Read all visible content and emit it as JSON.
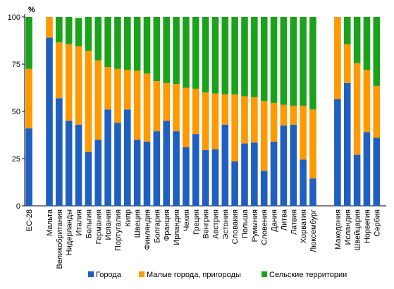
{
  "chart_data": {
    "type": "bar",
    "stacked": true,
    "unit": "%",
    "ylim": [
      0,
      100
    ],
    "yticks": [
      0,
      25,
      50,
      75,
      100
    ],
    "grid": false,
    "legend_position": "bottom",
    "groups": [
      {
        "categories": [
          "ЕС-28"
        ]
      },
      {
        "categories": [
          "Мальта",
          "Великобритания",
          "Нидерланды",
          "Италия",
          "Бельгия",
          "Германия",
          "Испания",
          "Португалия",
          "Кипр",
          "Швеция",
          "Финляндия",
          "Болгария",
          "Франция",
          "Ирландия",
          "Чехия",
          "Греция",
          "Венгрия",
          "Австрия",
          "Эстония",
          "Словакия",
          "Польша",
          "Румыния",
          "Словения",
          "Дания",
          "Литва",
          "Латвия",
          "Хорватия",
          "Люксембург"
        ]
      },
      {
        "categories": [
          "Македония",
          "Исландия",
          "Швейцария",
          "Норвегия",
          "Сербия"
        ]
      }
    ],
    "series": [
      {
        "name": "Города",
        "color": "#1f5fbf",
        "values": [
          41,
          89,
          57,
          45,
          43,
          28.5,
          35,
          51,
          44,
          51,
          35,
          34,
          39.5,
          45,
          39.5,
          31,
          38,
          29.5,
          30,
          43,
          23.5,
          33,
          33.5,
          18.5,
          34,
          42.5,
          43,
          24.5,
          14.5,
          56.5,
          65,
          27,
          39,
          36
        ]
      },
      {
        "name": "Малые города, пригороды",
        "color": "#ff9900",
        "values": [
          31.5,
          11,
          29.5,
          40.5,
          41.5,
          53.5,
          42,
          22.5,
          28.5,
          21,
          36.5,
          36,
          26.5,
          20,
          25,
          31.5,
          24,
          30.5,
          29.5,
          16,
          35.5,
          25,
          24,
          37,
          20.5,
          11,
          10,
          28.5,
          36.5,
          43.5,
          20.5,
          48.5,
          33,
          27.5
        ]
      },
      {
        "name": "Сельские территории",
        "color": "#1aa31a",
        "values": [
          27.5,
          0,
          13.5,
          14.5,
          15,
          18,
          23,
          26.5,
          27.5,
          28,
          28.5,
          30,
          34,
          35,
          35.5,
          37.5,
          38,
          40,
          40.5,
          41,
          41,
          42,
          42.5,
          44.5,
          45.5,
          46.5,
          47,
          47,
          49,
          0,
          14.5,
          24.5,
          28,
          36.5
        ]
      }
    ]
  }
}
